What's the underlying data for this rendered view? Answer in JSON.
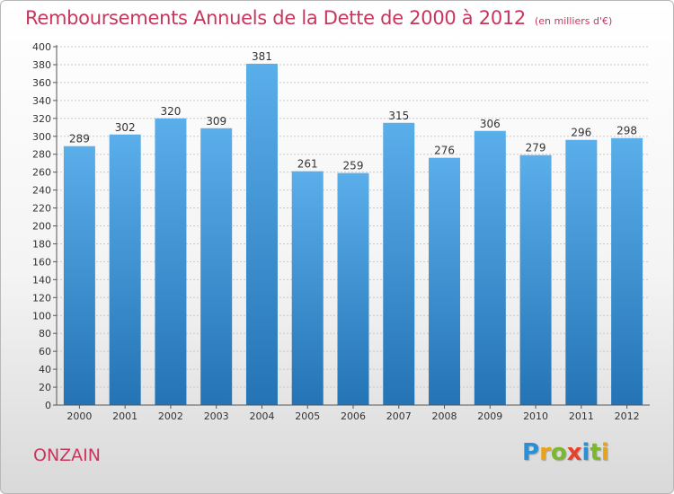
{
  "title": "Remboursements Annuels de la Dette de 2000 à 2012",
  "subtitle": "(en milliers d'€)",
  "commune": "ONZAIN",
  "logo": {
    "letters": [
      "P",
      "r",
      "o",
      "x",
      "i",
      "t",
      "i"
    ],
    "colors": [
      "#2a8fd6",
      "#e8a31c",
      "#7cb82f",
      "#e8402a",
      "#2a8fd6",
      "#7cb82f",
      "#e8a31c"
    ]
  },
  "colors": {
    "bar_top": "#5aaeea",
    "bar_bottom": "#2474b5",
    "accent": "#c8365e"
  },
  "chart_data": {
    "type": "bar",
    "categories": [
      "2000",
      "2001",
      "2002",
      "2003",
      "2004",
      "2005",
      "2006",
      "2007",
      "2008",
      "2009",
      "2010",
      "2011",
      "2012"
    ],
    "values": [
      289,
      302,
      320,
      309,
      381,
      261,
      259,
      315,
      276,
      306,
      279,
      296,
      298
    ],
    "ylim": [
      0,
      400
    ],
    "ytick_step": 20,
    "grid": true,
    "data_labels": true
  }
}
